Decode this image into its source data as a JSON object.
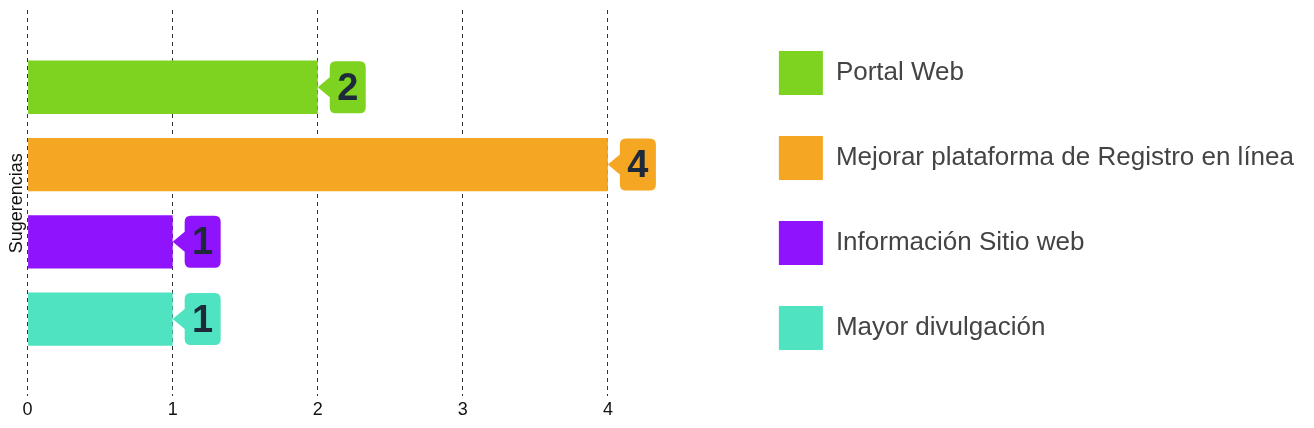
{
  "chart_data": {
    "type": "bar",
    "orientation": "horizontal",
    "ylabel": "Sugerencias",
    "categories": [
      null
    ],
    "series": [
      {
        "name": "Portal Web",
        "color": "#7ed321",
        "values": [
          2
        ]
      },
      {
        "name": "Mejorar plataforma de Registro en línea",
        "color": "#f5a623",
        "values": [
          4
        ]
      },
      {
        "name": "Información Sitio web",
        "color": "#9013fe",
        "values": [
          1
        ]
      },
      {
        "name": "Mayor divulgación",
        "color": "#50e3c2",
        "values": [
          1
        ]
      }
    ],
    "xlim": [
      0,
      4
    ],
    "xticks": [
      0,
      1,
      2,
      3,
      4
    ],
    "grid": "x",
    "legend": "right",
    "data_labels": true
  }
}
